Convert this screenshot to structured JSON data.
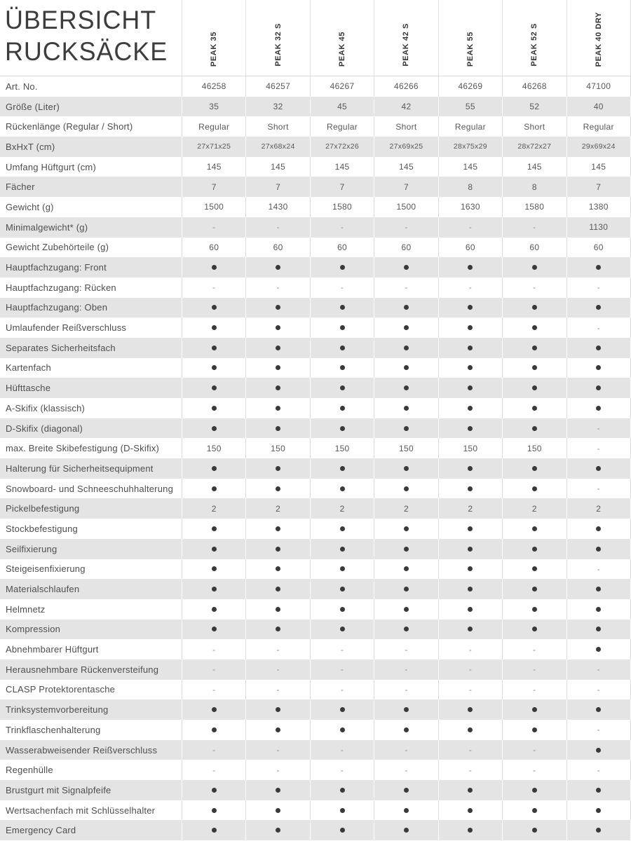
{
  "page": {
    "title_line1": "ÜBERSICHT",
    "title_line2": "RUCKSÄCKE"
  },
  "colors": {
    "stripe": "#e4e4e4",
    "dot": "#3a3a3a",
    "label_text": "#4e4e4e",
    "value_text": "#585858",
    "dash": "#8f8f8f",
    "separator_on_white": "#dcdcdc",
    "separator_on_gray": "#ffffff"
  },
  "table": {
    "columns": [
      "PEAK 35",
      "PEAK 32 S",
      "PEAK 45",
      "PEAK 42 S",
      "PEAK 55",
      "PEAK 52 S",
      "PEAK 40 DRY"
    ],
    "rows": [
      {
        "label": "Art. No.",
        "values": [
          "46258",
          "46257",
          "46267",
          "46266",
          "46269",
          "46268",
          "47100"
        ]
      },
      {
        "label": "Größe (Liter)",
        "values": [
          "35",
          "32",
          "45",
          "42",
          "55",
          "52",
          "40"
        ]
      },
      {
        "label": "Rückenlänge (Regular / Short)",
        "values": [
          "Regular",
          "Short",
          "Regular",
          "Short",
          "Regular",
          "Short",
          "Regular"
        ]
      },
      {
        "label": "BxHxT (cm)",
        "small": true,
        "values": [
          "27x71x25",
          "27x68x24",
          "27x72x26",
          "27x69x25",
          "28x75x29",
          "28x72x27",
          "29x69x24"
        ]
      },
      {
        "label": "Umfang Hüftgurt (cm)",
        "values": [
          "145",
          "145",
          "145",
          "145",
          "145",
          "145",
          "145"
        ]
      },
      {
        "label": "Fächer",
        "values": [
          "7",
          "7",
          "7",
          "7",
          "8",
          "8",
          "7"
        ]
      },
      {
        "label": "Gewicht (g)",
        "values": [
          "1500",
          "1430",
          "1580",
          "1500",
          "1630",
          "1580",
          "1380"
        ]
      },
      {
        "label": "Minimalgewicht* (g)",
        "values": [
          "-",
          "-",
          "-",
          "-",
          "-",
          "-",
          "1130"
        ]
      },
      {
        "label": "Gewicht Zubehörteile (g)",
        "values": [
          "60",
          "60",
          "60",
          "60",
          "60",
          "60",
          "60"
        ]
      },
      {
        "label": "Hauptfachzugang: Front",
        "values": [
          "dot",
          "dot",
          "dot",
          "dot",
          "dot",
          "dot",
          "dot"
        ]
      },
      {
        "label": "Hauptfachzugang: Rücken",
        "values": [
          "-",
          "-",
          "-",
          "-",
          "-",
          "-",
          "-"
        ]
      },
      {
        "label": "Hauptfachzugang: Oben",
        "values": [
          "dot",
          "dot",
          "dot",
          "dot",
          "dot",
          "dot",
          "dot"
        ]
      },
      {
        "label": "Umlaufender Reißverschluss",
        "values": [
          "dot",
          "dot",
          "dot",
          "dot",
          "dot",
          "dot",
          "-"
        ]
      },
      {
        "label": "Separates Sicherheitsfach",
        "values": [
          "dot",
          "dot",
          "dot",
          "dot",
          "dot",
          "dot",
          "dot"
        ]
      },
      {
        "label": "Kartenfach",
        "values": [
          "dot",
          "dot",
          "dot",
          "dot",
          "dot",
          "dot",
          "dot"
        ]
      },
      {
        "label": "Hüfttasche",
        "values": [
          "dot",
          "dot",
          "dot",
          "dot",
          "dot",
          "dot",
          "dot"
        ]
      },
      {
        "label": "A-Skifix (klassisch)",
        "values": [
          "dot",
          "dot",
          "dot",
          "dot",
          "dot",
          "dot",
          "dot"
        ]
      },
      {
        "label": "D-Skifix (diagonal)",
        "values": [
          "dot",
          "dot",
          "dot",
          "dot",
          "dot",
          "dot",
          "-"
        ]
      },
      {
        "label": "max. Breite Skibefestigung (D-Skifix)",
        "values": [
          "150",
          "150",
          "150",
          "150",
          "150",
          "150",
          "-"
        ]
      },
      {
        "label": "Halterung für Sicherheitsequipment",
        "values": [
          "dot",
          "dot",
          "dot",
          "dot",
          "dot",
          "dot",
          "dot"
        ]
      },
      {
        "label": "Snowboard- und Schneeschuhhalterung",
        "values": [
          "dot",
          "dot",
          "dot",
          "dot",
          "dot",
          "dot",
          "-"
        ]
      },
      {
        "label": "Pickelbefestigung",
        "values": [
          "2",
          "2",
          "2",
          "2",
          "2",
          "2",
          "2"
        ]
      },
      {
        "label": "Stockbefestigung",
        "values": [
          "dot",
          "dot",
          "dot",
          "dot",
          "dot",
          "dot",
          "dot"
        ]
      },
      {
        "label": "Seilfixierung",
        "values": [
          "dot",
          "dot",
          "dot",
          "dot",
          "dot",
          "dot",
          "dot"
        ]
      },
      {
        "label": "Steigeisenfixierung",
        "values": [
          "dot",
          "dot",
          "dot",
          "dot",
          "dot",
          "dot",
          "-"
        ]
      },
      {
        "label": "Materialschlaufen",
        "values": [
          "dot",
          "dot",
          "dot",
          "dot",
          "dot",
          "dot",
          "dot"
        ]
      },
      {
        "label": "Helmnetz",
        "values": [
          "dot",
          "dot",
          "dot",
          "dot",
          "dot",
          "dot",
          "dot"
        ]
      },
      {
        "label": "Kompression",
        "values": [
          "dot",
          "dot",
          "dot",
          "dot",
          "dot",
          "dot",
          "dot"
        ]
      },
      {
        "label": "Abnehmbarer Hüftgurt",
        "values": [
          "-",
          "-",
          "-",
          "-",
          "-",
          "-",
          "dot"
        ]
      },
      {
        "label": "Herausnehmbare Rückenversteifung",
        "values": [
          "-",
          "-",
          "-",
          "-",
          "-",
          "-",
          "-"
        ]
      },
      {
        "label": "CLASP Protektorentasche",
        "values": [
          "-",
          "-",
          "-",
          "-",
          "-",
          "-",
          "-"
        ]
      },
      {
        "label": "Trinksystemvorbereitung",
        "values": [
          "dot",
          "dot",
          "dot",
          "dot",
          "dot",
          "dot",
          "dot"
        ]
      },
      {
        "label": "Trinkflaschenhalterung",
        "values": [
          "dot",
          "dot",
          "dot",
          "dot",
          "dot",
          "dot",
          "-"
        ]
      },
      {
        "label": "Wasserabweisender Reißverschluss",
        "values": [
          "-",
          "-",
          "-",
          "-",
          "-",
          "-",
          "dot"
        ]
      },
      {
        "label": "Regenhülle",
        "values": [
          "-",
          "-",
          "-",
          "-",
          "-",
          "-",
          "-"
        ]
      },
      {
        "label": "Brustgurt mit Signalpfeife",
        "values": [
          "dot",
          "dot",
          "dot",
          "dot",
          "dot",
          "dot",
          "dot"
        ]
      },
      {
        "label": "Wertsachenfach mit Schlüsselhalter",
        "values": [
          "dot",
          "dot",
          "dot",
          "dot",
          "dot",
          "dot",
          "dot"
        ]
      },
      {
        "label": "Emergency Card",
        "values": [
          "dot",
          "dot",
          "dot",
          "dot",
          "dot",
          "dot",
          "dot"
        ]
      }
    ]
  }
}
